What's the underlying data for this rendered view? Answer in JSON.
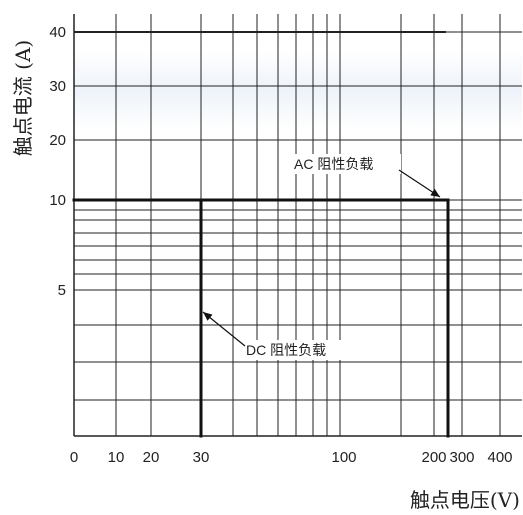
{
  "chart_data": {
    "type": "line",
    "xlabel": "触点电压(V)",
    "ylabel": "触点电流 (A)",
    "x_scale": "log",
    "y_scale": "log",
    "x_ticks": [
      "0",
      "10",
      "20",
      "30",
      "100",
      "200",
      "300",
      "400"
    ],
    "y_ticks": [
      "40",
      "30",
      "20",
      "10",
      "5"
    ],
    "grid": true,
    "series": [
      {
        "name": "AC 阻性负载",
        "points": [
          {
            "x": 0,
            "y": 10
          },
          {
            "x": 250,
            "y": 10
          },
          {
            "x": 250,
            "y": 0
          }
        ]
      },
      {
        "name": "DC 阻性负载",
        "points": [
          {
            "x": 0,
            "y": 10
          },
          {
            "x": 30,
            "y": 10
          },
          {
            "x": 30,
            "y": 0
          }
        ]
      }
    ]
  },
  "colors": {
    "grid": "#222222",
    "curve": "#111111",
    "text": "#222222"
  }
}
